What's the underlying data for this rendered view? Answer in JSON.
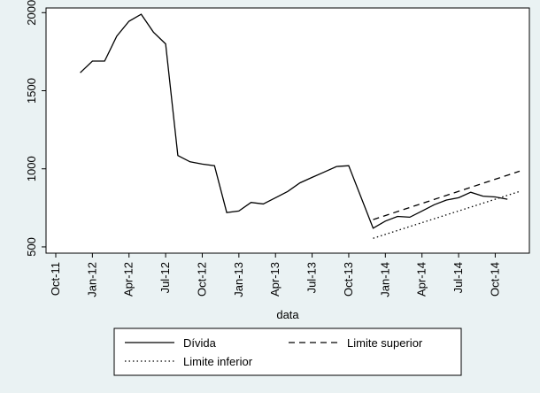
{
  "chart_data": {
    "type": "line",
    "xlabel": "data",
    "ylabel": "",
    "x_ticks": [
      "Oct-11",
      "Jan-12",
      "Apr-12",
      "Jul-12",
      "Oct-12",
      "Jan-13",
      "Apr-13",
      "Jul-13",
      "Oct-13",
      "Jan-14",
      "Apr-14",
      "Jul-14",
      "Oct-14"
    ],
    "y_ticks": [
      500,
      1000,
      1500,
      2000
    ],
    "ylim": [
      460,
      2030
    ],
    "xlim": [
      "2011-10",
      "2014-12"
    ],
    "grid": false,
    "legend_position": "bottom",
    "series": [
      {
        "name": "Dívida",
        "style": "solid",
        "color": "#000000",
        "points": [
          [
            "2011-12",
            1615
          ],
          [
            "2012-01",
            1690
          ],
          [
            "2012-02",
            1690
          ],
          [
            "2012-03",
            1850
          ],
          [
            "2012-04",
            1945
          ],
          [
            "2012-05",
            1990
          ],
          [
            "2012-06",
            1875
          ],
          [
            "2012-07",
            1800
          ],
          [
            "2012-08",
            1085
          ],
          [
            "2012-09",
            1045
          ],
          [
            "2012-10",
            1030
          ],
          [
            "2012-11",
            1020
          ],
          [
            "2012-12",
            720
          ],
          [
            "2013-01",
            730
          ],
          [
            "2013-02",
            785
          ],
          [
            "2013-03",
            775
          ],
          [
            "2013-04",
            815
          ],
          [
            "2013-05",
            855
          ],
          [
            "2013-06",
            910
          ],
          [
            "2013-07",
            945
          ],
          [
            "2013-08",
            980
          ],
          [
            "2013-09",
            1015
          ],
          [
            "2013-10",
            1020
          ],
          [
            "2013-11",
            820
          ],
          [
            "2013-12",
            620
          ],
          [
            "2014-01",
            665
          ],
          [
            "2014-02",
            695
          ],
          [
            "2014-03",
            690
          ],
          [
            "2014-04",
            730
          ],
          [
            "2014-05",
            770
          ],
          [
            "2014-06",
            800
          ],
          [
            "2014-07",
            815
          ],
          [
            "2014-08",
            850
          ],
          [
            "2014-09",
            825
          ],
          [
            "2014-10",
            820
          ],
          [
            "2014-11",
            805
          ]
        ]
      },
      {
        "name": "Limite superior",
        "style": "dashed",
        "color": "#000000",
        "points": [
          [
            "2013-12",
            675
          ],
          [
            "2014-12",
            985
          ]
        ]
      },
      {
        "name": "Limite inferior",
        "style": "dotted",
        "color": "#000000",
        "points": [
          [
            "2013-12",
            555
          ],
          [
            "2014-12",
            855
          ]
        ]
      }
    ]
  }
}
